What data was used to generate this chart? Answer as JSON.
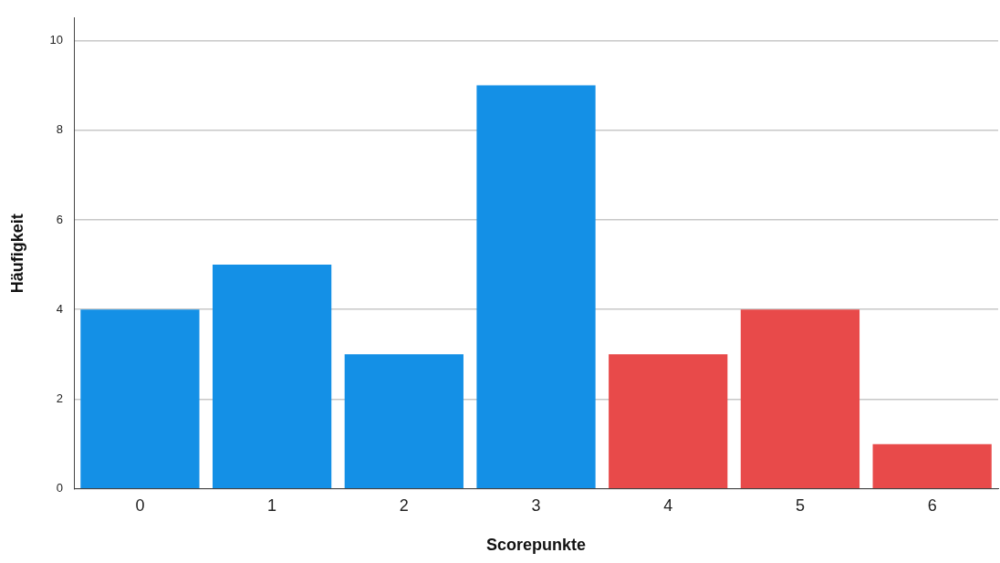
{
  "chart_data": {
    "type": "bar",
    "xlabel": "Scorepunkte",
    "ylabel": "Häufigkeit",
    "categories": [
      "0",
      "1",
      "2",
      "3",
      "4",
      "5",
      "6"
    ],
    "values": [
      4,
      5,
      3,
      9,
      3,
      4,
      1
    ],
    "colors": [
      "#1490e6",
      "#1490e6",
      "#1490e6",
      "#1490e6",
      "#e84a4a",
      "#e84a4a",
      "#e84a4a"
    ],
    "ylim": [
      0,
      10.5
    ],
    "yticks": [
      0,
      2,
      4,
      6,
      8,
      10
    ],
    "grid": "y",
    "legend": false
  }
}
